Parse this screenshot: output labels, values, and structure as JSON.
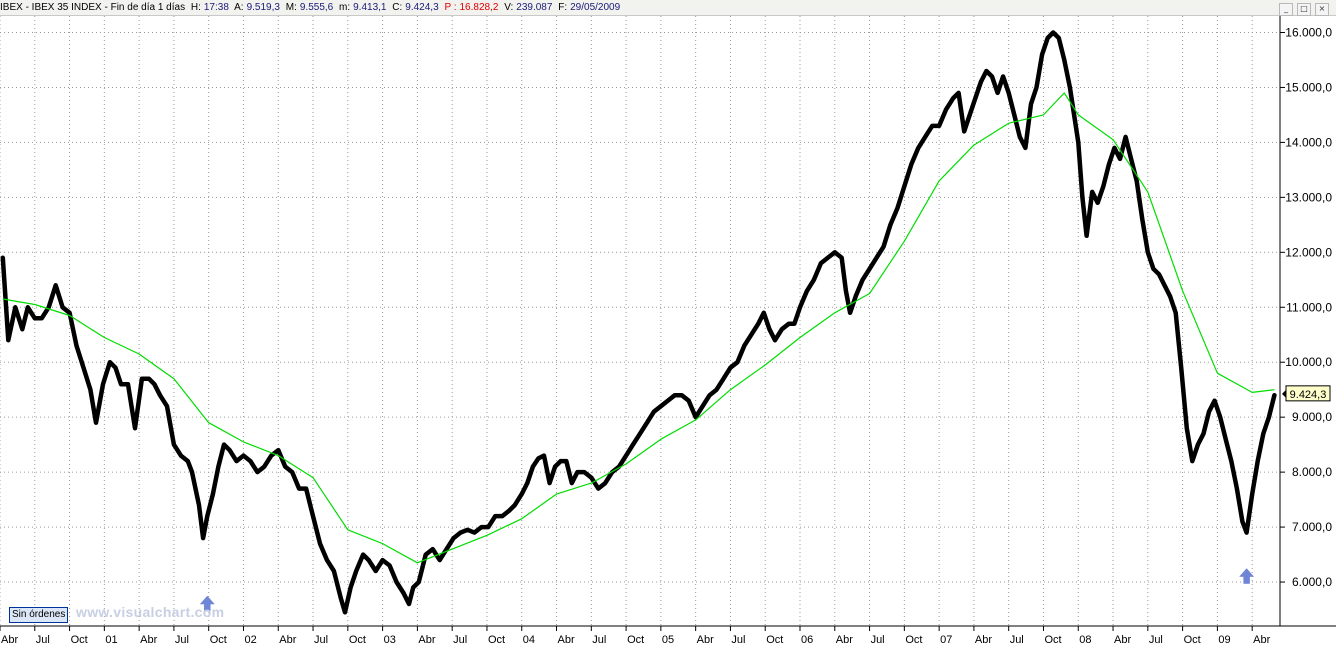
{
  "header": {
    "title": "IBEX - IBEX 35 INDEX - Fin de día 1 días",
    "high_label": "H:",
    "high": "17:38",
    "open_label": "A:",
    "open": "9.519,3",
    "max_label": "M:",
    "max": "9.555,6",
    "min_label": "m:",
    "min": "9.413,1",
    "close_label": "C:",
    "close": "9.424,3",
    "p_label": "P :",
    "p": "16.828,2",
    "vol_label": "V:",
    "vol": "239.087",
    "date_label": "F:",
    "date": "29/05/2009",
    "buttons": [
      "_",
      "□",
      "×"
    ]
  },
  "footer": {
    "orders_button": "Sin órdenes",
    "watermark": "www.visualchart.com"
  },
  "colors": {
    "price": "#000000",
    "moving_average": "#00dd00",
    "arrow": "#6f86d6",
    "grid": "#9a9a9a",
    "last_price_bg": "#ffffcc"
  },
  "chart_data": {
    "type": "line",
    "title": "IBEX - IBEX 35 INDEX",
    "x_range": [
      "2000-04",
      "2009-05"
    ],
    "ylim": [
      5200,
      16300
    ],
    "y_ticks": [
      {
        "value": 16000,
        "label": "16.000,0"
      },
      {
        "value": 15000,
        "label": "15.000,0"
      },
      {
        "value": 14000,
        "label": "14.000,0"
      },
      {
        "value": 13000,
        "label": "13.000,0"
      },
      {
        "value": 12000,
        "label": "12.000,0"
      },
      {
        "value": 11000,
        "label": "11.000,0"
      },
      {
        "value": 10000,
        "label": "10.000,0"
      },
      {
        "value": 9000,
        "label": "9.000,0"
      },
      {
        "value": 8000,
        "label": "8.000,0"
      },
      {
        "value": 7000,
        "label": "7.000,0"
      },
      {
        "value": 6000,
        "label": "6.000,0"
      }
    ],
    "x_ticks": [
      {
        "x": 2000.25,
        "label": "Abr"
      },
      {
        "x": 2000.5,
        "label": "Jul"
      },
      {
        "x": 2000.75,
        "label": "Oct"
      },
      {
        "x": 2001.0,
        "label": "01"
      },
      {
        "x": 2001.25,
        "label": "Abr"
      },
      {
        "x": 2001.5,
        "label": "Jul"
      },
      {
        "x": 2001.75,
        "label": "Oct"
      },
      {
        "x": 2002.0,
        "label": "02"
      },
      {
        "x": 2002.25,
        "label": "Abr"
      },
      {
        "x": 2002.5,
        "label": "Jul"
      },
      {
        "x": 2002.75,
        "label": "Oct"
      },
      {
        "x": 2003.0,
        "label": "03"
      },
      {
        "x": 2003.25,
        "label": "Abr"
      },
      {
        "x": 2003.5,
        "label": "Jul"
      },
      {
        "x": 2003.75,
        "label": "Oct"
      },
      {
        "x": 2004.0,
        "label": "04"
      },
      {
        "x": 2004.25,
        "label": "Abr"
      },
      {
        "x": 2004.5,
        "label": "Jul"
      },
      {
        "x": 2004.75,
        "label": "Oct"
      },
      {
        "x": 2005.0,
        "label": "05"
      },
      {
        "x": 2005.25,
        "label": "Abr"
      },
      {
        "x": 2005.5,
        "label": "Jul"
      },
      {
        "x": 2005.75,
        "label": "Oct"
      },
      {
        "x": 2006.0,
        "label": "06"
      },
      {
        "x": 2006.25,
        "label": "Abr"
      },
      {
        "x": 2006.5,
        "label": "Jul"
      },
      {
        "x": 2006.75,
        "label": "Oct"
      },
      {
        "x": 2007.0,
        "label": "07"
      },
      {
        "x": 2007.25,
        "label": "Abr"
      },
      {
        "x": 2007.5,
        "label": "Jul"
      },
      {
        "x": 2007.75,
        "label": "Oct"
      },
      {
        "x": 2008.0,
        "label": "08"
      },
      {
        "x": 2008.25,
        "label": "Abr"
      },
      {
        "x": 2008.5,
        "label": "Jul"
      },
      {
        "x": 2008.75,
        "label": "Oct"
      },
      {
        "x": 2009.0,
        "label": "09"
      },
      {
        "x": 2009.25,
        "label": "Abr"
      }
    ],
    "series": [
      {
        "name": "IBEX",
        "color": "#000000",
        "points": [
          [
            2000.27,
            11900
          ],
          [
            2000.31,
            10400
          ],
          [
            2000.36,
            11000
          ],
          [
            2000.41,
            10600
          ],
          [
            2000.45,
            11000
          ],
          [
            2000.5,
            10800
          ],
          [
            2000.55,
            10800
          ],
          [
            2000.6,
            11000
          ],
          [
            2000.65,
            11400
          ],
          [
            2000.7,
            11000
          ],
          [
            2000.75,
            10900
          ],
          [
            2000.8,
            10300
          ],
          [
            2000.85,
            9900
          ],
          [
            2000.9,
            9500
          ],
          [
            2000.94,
            8900
          ],
          [
            2000.99,
            9600
          ],
          [
            2001.04,
            10000
          ],
          [
            2001.08,
            9900
          ],
          [
            2001.12,
            9600
          ],
          [
            2001.17,
            9600
          ],
          [
            2001.22,
            8800
          ],
          [
            2001.27,
            9700
          ],
          [
            2001.32,
            9700
          ],
          [
            2001.36,
            9600
          ],
          [
            2001.4,
            9400
          ],
          [
            2001.45,
            9200
          ],
          [
            2001.5,
            8500
          ],
          [
            2001.55,
            8300
          ],
          [
            2001.6,
            8200
          ],
          [
            2001.63,
            8000
          ],
          [
            2001.68,
            7400
          ],
          [
            2001.71,
            6800
          ],
          [
            2001.74,
            7200
          ],
          [
            2001.78,
            7600
          ],
          [
            2001.82,
            8100
          ],
          [
            2001.86,
            8500
          ],
          [
            2001.9,
            8400
          ],
          [
            2001.95,
            8200
          ],
          [
            2002.0,
            8300
          ],
          [
            2002.05,
            8200
          ],
          [
            2002.1,
            8000
          ],
          [
            2002.15,
            8100
          ],
          [
            2002.2,
            8300
          ],
          [
            2002.25,
            8400
          ],
          [
            2002.3,
            8100
          ],
          [
            2002.35,
            8000
          ],
          [
            2002.4,
            7700
          ],
          [
            2002.45,
            7700
          ],
          [
            2002.5,
            7200
          ],
          [
            2002.55,
            6700
          ],
          [
            2002.6,
            6400
          ],
          [
            2002.65,
            6200
          ],
          [
            2002.7,
            5700
          ],
          [
            2002.73,
            5450
          ],
          [
            2002.77,
            5900
          ],
          [
            2002.81,
            6200
          ],
          [
            2002.86,
            6500
          ],
          [
            2002.9,
            6400
          ],
          [
            2002.95,
            6200
          ],
          [
            2003.0,
            6400
          ],
          [
            2003.05,
            6300
          ],
          [
            2003.1,
            6000
          ],
          [
            2003.15,
            5800
          ],
          [
            2003.19,
            5600
          ],
          [
            2003.22,
            5900
          ],
          [
            2003.26,
            6000
          ],
          [
            2003.31,
            6500
          ],
          [
            2003.36,
            6600
          ],
          [
            2003.41,
            6400
          ],
          [
            2003.46,
            6600
          ],
          [
            2003.51,
            6800
          ],
          [
            2003.56,
            6900
          ],
          [
            2003.61,
            6950
          ],
          [
            2003.66,
            6900
          ],
          [
            2003.71,
            7000
          ],
          [
            2003.76,
            7000
          ],
          [
            2003.81,
            7200
          ],
          [
            2003.86,
            7200
          ],
          [
            2003.91,
            7300
          ],
          [
            2003.95,
            7400
          ],
          [
            2004.0,
            7600
          ],
          [
            2004.04,
            7800
          ],
          [
            2004.08,
            8100
          ],
          [
            2004.12,
            8250
          ],
          [
            2004.16,
            8300
          ],
          [
            2004.2,
            7800
          ],
          [
            2004.24,
            8100
          ],
          [
            2004.28,
            8200
          ],
          [
            2004.32,
            8200
          ],
          [
            2004.36,
            7800
          ],
          [
            2004.4,
            8000
          ],
          [
            2004.45,
            8000
          ],
          [
            2004.5,
            7900
          ],
          [
            2004.55,
            7700
          ],
          [
            2004.6,
            7800
          ],
          [
            2004.65,
            8000
          ],
          [
            2004.7,
            8100
          ],
          [
            2004.75,
            8300
          ],
          [
            2004.8,
            8500
          ],
          [
            2004.85,
            8700
          ],
          [
            2004.9,
            8900
          ],
          [
            2004.95,
            9100
          ],
          [
            2005.0,
            9200
          ],
          [
            2005.05,
            9300
          ],
          [
            2005.1,
            9400
          ],
          [
            2005.15,
            9400
          ],
          [
            2005.2,
            9300
          ],
          [
            2005.25,
            9000
          ],
          [
            2005.3,
            9200
          ],
          [
            2005.35,
            9400
          ],
          [
            2005.4,
            9500
          ],
          [
            2005.45,
            9700
          ],
          [
            2005.5,
            9900
          ],
          [
            2005.55,
            10000
          ],
          [
            2005.6,
            10300
          ],
          [
            2005.65,
            10500
          ],
          [
            2005.7,
            10700
          ],
          [
            2005.74,
            10900
          ],
          [
            2005.78,
            10600
          ],
          [
            2005.82,
            10400
          ],
          [
            2005.87,
            10600
          ],
          [
            2005.92,
            10700
          ],
          [
            2005.96,
            10700
          ],
          [
            2006.0,
            11000
          ],
          [
            2006.05,
            11300
          ],
          [
            2006.1,
            11500
          ],
          [
            2006.15,
            11800
          ],
          [
            2006.2,
            11900
          ],
          [
            2006.25,
            12000
          ],
          [
            2006.3,
            11900
          ],
          [
            2006.33,
            11300
          ],
          [
            2006.36,
            10900
          ],
          [
            2006.4,
            11200
          ],
          [
            2006.45,
            11500
          ],
          [
            2006.5,
            11700
          ],
          [
            2006.55,
            11900
          ],
          [
            2006.6,
            12100
          ],
          [
            2006.65,
            12500
          ],
          [
            2006.7,
            12800
          ],
          [
            2006.75,
            13200
          ],
          [
            2006.8,
            13600
          ],
          [
            2006.85,
            13900
          ],
          [
            2006.9,
            14100
          ],
          [
            2006.95,
            14300
          ],
          [
            2007.0,
            14300
          ],
          [
            2007.05,
            14600
          ],
          [
            2007.1,
            14800
          ],
          [
            2007.14,
            14900
          ],
          [
            2007.18,
            14200
          ],
          [
            2007.22,
            14500
          ],
          [
            2007.26,
            14800
          ],
          [
            2007.3,
            15100
          ],
          [
            2007.34,
            15300
          ],
          [
            2007.38,
            15200
          ],
          [
            2007.42,
            14900
          ],
          [
            2007.46,
            15200
          ],
          [
            2007.5,
            14900
          ],
          [
            2007.54,
            14500
          ],
          [
            2007.58,
            14100
          ],
          [
            2007.62,
            13900
          ],
          [
            2007.66,
            14700
          ],
          [
            2007.7,
            15000
          ],
          [
            2007.74,
            15600
          ],
          [
            2007.78,
            15900
          ],
          [
            2007.82,
            16000
          ],
          [
            2007.86,
            15900
          ],
          [
            2007.9,
            15500
          ],
          [
            2007.94,
            15000
          ],
          [
            2007.97,
            14500
          ],
          [
            2008.0,
            14000
          ],
          [
            2008.03,
            13000
          ],
          [
            2008.06,
            12300
          ],
          [
            2008.1,
            13100
          ],
          [
            2008.14,
            12900
          ],
          [
            2008.18,
            13200
          ],
          [
            2008.22,
            13600
          ],
          [
            2008.26,
            13900
          ],
          [
            2008.3,
            13700
          ],
          [
            2008.34,
            14100
          ],
          [
            2008.38,
            13700
          ],
          [
            2008.42,
            13300
          ],
          [
            2008.46,
            12600
          ],
          [
            2008.5,
            12000
          ],
          [
            2008.54,
            11700
          ],
          [
            2008.58,
            11600
          ],
          [
            2008.62,
            11400
          ],
          [
            2008.66,
            11200
          ],
          [
            2008.7,
            10900
          ],
          [
            2008.74,
            9900
          ],
          [
            2008.78,
            8800
          ],
          [
            2008.82,
            8200
          ],
          [
            2008.86,
            8500
          ],
          [
            2008.9,
            8700
          ],
          [
            2008.94,
            9100
          ],
          [
            2008.98,
            9300
          ],
          [
            2009.02,
            9000
          ],
          [
            2009.06,
            8600
          ],
          [
            2009.1,
            8200
          ],
          [
            2009.14,
            7700
          ],
          [
            2009.18,
            7100
          ],
          [
            2009.21,
            6900
          ],
          [
            2009.25,
            7600
          ],
          [
            2009.29,
            8200
          ],
          [
            2009.33,
            8700
          ],
          [
            2009.37,
            9000
          ],
          [
            2009.41,
            9400
          ]
        ]
      },
      {
        "name": "Media móvil",
        "color": "#00dd00",
        "points": [
          [
            2000.27,
            11150
          ],
          [
            2000.5,
            11050
          ],
          [
            2000.75,
            10850
          ],
          [
            2001.0,
            10450
          ],
          [
            2001.25,
            10150
          ],
          [
            2001.5,
            9700
          ],
          [
            2001.75,
            8900
          ],
          [
            2002.0,
            8550
          ],
          [
            2002.25,
            8300
          ],
          [
            2002.5,
            7900
          ],
          [
            2002.75,
            6950
          ],
          [
            2003.0,
            6700
          ],
          [
            2003.25,
            6350
          ],
          [
            2003.5,
            6600
          ],
          [
            2003.75,
            6850
          ],
          [
            2004.0,
            7150
          ],
          [
            2004.25,
            7600
          ],
          [
            2004.5,
            7800
          ],
          [
            2004.75,
            8150
          ],
          [
            2005.0,
            8600
          ],
          [
            2005.25,
            8950
          ],
          [
            2005.5,
            9500
          ],
          [
            2005.75,
            9950
          ],
          [
            2006.0,
            10450
          ],
          [
            2006.25,
            10900
          ],
          [
            2006.5,
            11250
          ],
          [
            2006.75,
            12200
          ],
          [
            2007.0,
            13300
          ],
          [
            2007.25,
            13950
          ],
          [
            2007.5,
            14350
          ],
          [
            2007.75,
            14500
          ],
          [
            2007.9,
            14900
          ],
          [
            2008.0,
            14500
          ],
          [
            2008.25,
            14050
          ],
          [
            2008.5,
            13100
          ],
          [
            2008.75,
            11300
          ],
          [
            2009.0,
            9800
          ],
          [
            2009.25,
            9450
          ],
          [
            2009.41,
            9500
          ]
        ]
      }
    ],
    "markers": [
      {
        "x": 2001.74,
        "y": 5600,
        "type": "up-arrow"
      },
      {
        "x": 2009.21,
        "y": 6100,
        "type": "up-arrow"
      }
    ],
    "last_price_label": "9.424,3",
    "last_price_value": 9424.3,
    "grid": true
  }
}
